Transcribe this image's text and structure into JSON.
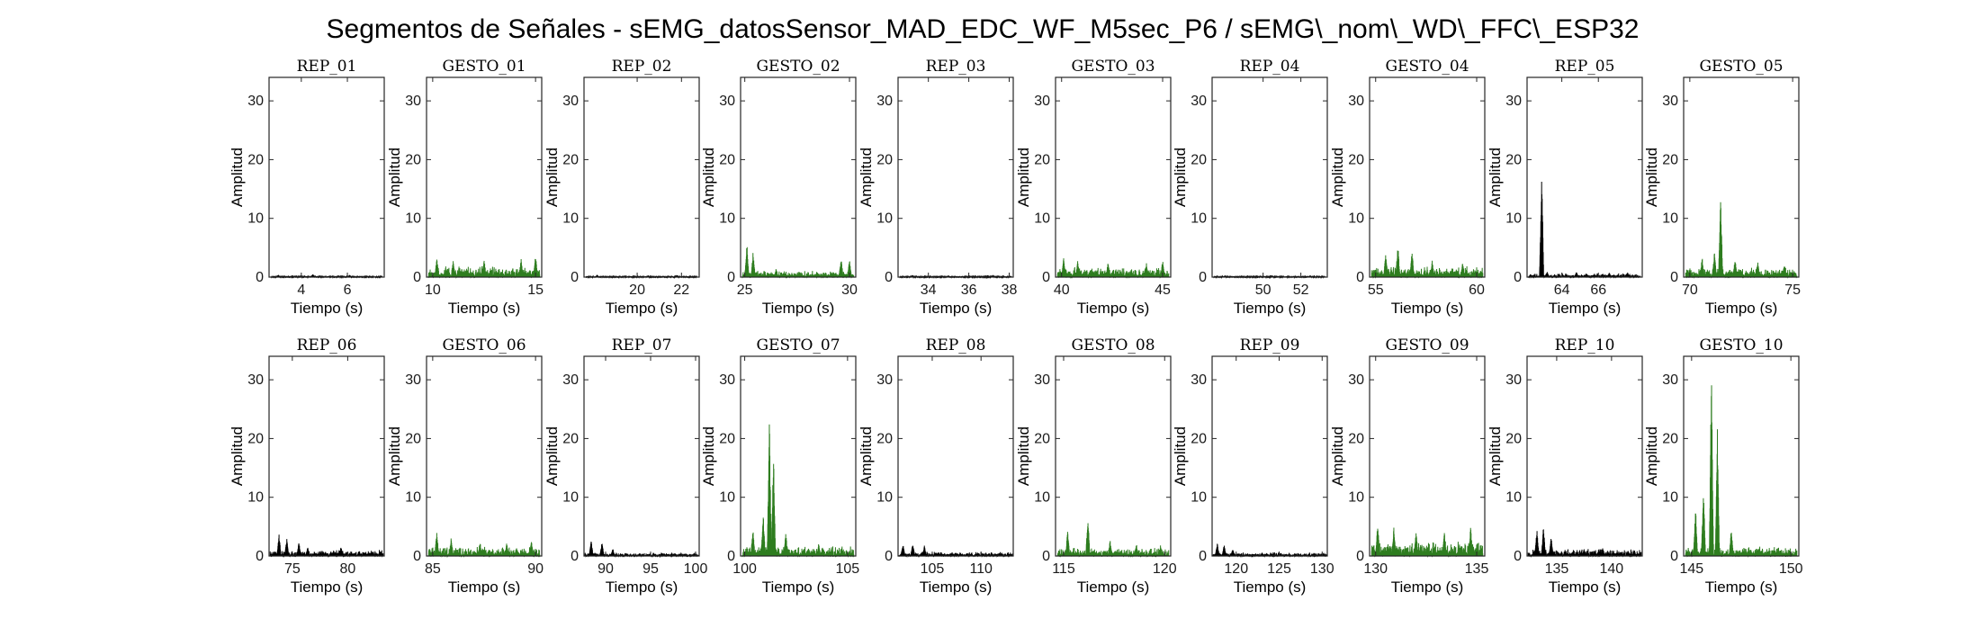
{
  "figure": {
    "title": "Segmentos de Señales - sEMG_datosSensor_MAD_EDC_WF_M5sec_P6 / sEMG\\_nom\\_WD\\_FFC\\_ESP32"
  },
  "colors": {
    "rep": "#000000",
    "gesto": "#2e7d1f",
    "axis": "#262626"
  },
  "chart_data": [
    {
      "type": "line",
      "title": "REP_01",
      "xlabel": "Tiempo (s)",
      "ylabel": "Amplitud",
      "xlim": [
        2.6,
        7.6
      ],
      "ylim": [
        0,
        34
      ],
      "yticks": [
        0,
        10,
        20,
        30
      ],
      "xticks": [
        4,
        6
      ],
      "color": "#000000",
      "series": [
        {
          "x": [
            2.7,
            7.5
          ],
          "peaks": [
            [
              3.0,
              0.4
            ],
            [
              4.5,
              0.5
            ],
            [
              6.1,
              0.4
            ]
          ],
          "noise": 0.25
        }
      ]
    },
    {
      "type": "line",
      "title": "GESTO_01",
      "xlabel": "Tiempo (s)",
      "ylabel": "Amplitud",
      "xlim": [
        9.7,
        15.3
      ],
      "ylim": [
        0,
        34
      ],
      "yticks": [
        0,
        10,
        20,
        30
      ],
      "xticks": [
        10,
        15
      ],
      "color": "#2e7d1f",
      "series": [
        {
          "x": [
            9.8,
            15.2
          ],
          "peaks": [
            [
              10.2,
              3.5
            ],
            [
              11.0,
              3.0
            ],
            [
              12.5,
              3.2
            ],
            [
              14.3,
              3.4
            ],
            [
              15.0,
              4.2
            ]
          ],
          "noise": 1.6
        }
      ]
    },
    {
      "type": "line",
      "title": "REP_02",
      "xlabel": "Tiempo (s)",
      "ylabel": "Amplitud",
      "xlim": [
        17.6,
        22.8
      ],
      "ylim": [
        0,
        34
      ],
      "yticks": [
        0,
        10,
        20,
        30
      ],
      "xticks": [
        20,
        22
      ],
      "color": "#000000",
      "series": [
        {
          "x": [
            17.7,
            22.7
          ],
          "peaks": [
            [
              18.2,
              0.4
            ],
            [
              20.5,
              0.3
            ],
            [
              21.8,
              0.4
            ]
          ],
          "noise": 0.2
        }
      ]
    },
    {
      "type": "line",
      "title": "GESTO_02",
      "xlabel": "Tiempo (s)",
      "ylabel": "Amplitud",
      "xlim": [
        24.8,
        30.3
      ],
      "ylim": [
        0,
        34
      ],
      "yticks": [
        0,
        10,
        20,
        30
      ],
      "xticks": [
        25,
        30
      ],
      "color": "#2e7d1f",
      "series": [
        {
          "x": [
            24.9,
            30.2
          ],
          "peaks": [
            [
              25.1,
              6.0
            ],
            [
              25.4,
              4.5
            ],
            [
              26.5,
              1.6
            ],
            [
              29.6,
              3.5
            ],
            [
              30.0,
              3.0
            ]
          ],
          "noise": 0.9
        }
      ]
    },
    {
      "type": "line",
      "title": "REP_03",
      "xlabel": "Tiempo (s)",
      "ylabel": "Amplitud",
      "xlim": [
        32.5,
        38.2
      ],
      "ylim": [
        0,
        34
      ],
      "yticks": [
        0,
        10,
        20,
        30
      ],
      "xticks": [
        34,
        36,
        38
      ],
      "color": "#000000",
      "series": [
        {
          "x": [
            32.6,
            38.1
          ],
          "peaks": [
            [
              33.2,
              0.4
            ],
            [
              35.0,
              0.3
            ],
            [
              37.2,
              0.4
            ]
          ],
          "noise": 0.2
        }
      ]
    },
    {
      "type": "line",
      "title": "GESTO_03",
      "xlabel": "Tiempo (s)",
      "ylabel": "Amplitud",
      "xlim": [
        39.7,
        45.4
      ],
      "ylim": [
        0,
        34
      ],
      "yticks": [
        0,
        10,
        20,
        30
      ],
      "xticks": [
        40,
        45
      ],
      "color": "#2e7d1f",
      "series": [
        {
          "x": [
            39.8,
            45.3
          ],
          "peaks": [
            [
              40.1,
              3.3
            ],
            [
              40.8,
              2.9
            ],
            [
              42.3,
              2.8
            ],
            [
              44.2,
              2.5
            ],
            [
              45.0,
              3.0
            ]
          ],
          "noise": 1.4
        }
      ]
    },
    {
      "type": "line",
      "title": "REP_04",
      "xlabel": "Tiempo (s)",
      "ylabel": "Amplitud",
      "xlim": [
        47.3,
        53.4
      ],
      "ylim": [
        0,
        34
      ],
      "yticks": [
        0,
        10,
        20,
        30
      ],
      "xticks": [
        50,
        52
      ],
      "color": "#000000",
      "series": [
        {
          "x": [
            47.4,
            53.3
          ],
          "peaks": [
            [
              48.0,
              0.3
            ],
            [
              50.5,
              0.3
            ],
            [
              52.5,
              0.3
            ]
          ],
          "noise": 0.2
        }
      ]
    },
    {
      "type": "line",
      "title": "GESTO_04",
      "xlabel": "Tiempo (s)",
      "ylabel": "Amplitud",
      "xlim": [
        54.7,
        60.4
      ],
      "ylim": [
        0,
        34
      ],
      "yticks": [
        0,
        10,
        20,
        30
      ],
      "xticks": [
        55,
        60
      ],
      "color": "#2e7d1f",
      "series": [
        {
          "x": [
            54.8,
            60.3
          ],
          "peaks": [
            [
              55.5,
              4.2
            ],
            [
              56.1,
              5.8
            ],
            [
              56.8,
              4.8
            ],
            [
              57.8,
              3.0
            ],
            [
              59.3,
              2.6
            ]
          ],
          "noise": 1.5
        }
      ]
    },
    {
      "type": "line",
      "title": "REP_05",
      "xlabel": "Tiempo (s)",
      "ylabel": "Amplitud",
      "xlim": [
        62.1,
        68.4
      ],
      "ylim": [
        0,
        34
      ],
      "yticks": [
        0,
        10,
        20,
        30
      ],
      "xticks": [
        64,
        66
      ],
      "color": "#000000",
      "series": [
        {
          "x": [
            62.2,
            68.3
          ],
          "peaks": [
            [
              62.9,
              18.5
            ],
            [
              63.2,
              1.0
            ],
            [
              64.8,
              0.9
            ],
            [
              66.6,
              0.8
            ],
            [
              67.6,
              0.8
            ]
          ],
          "noise": 0.55
        }
      ]
    },
    {
      "type": "line",
      "title": "GESTO_05",
      "xlabel": "Tiempo (s)",
      "ylabel": "Amplitud",
      "xlim": [
        69.7,
        75.3
      ],
      "ylim": [
        0,
        34
      ],
      "yticks": [
        0,
        10,
        20,
        30
      ],
      "xticks": [
        70,
        75
      ],
      "color": "#2e7d1f",
      "series": [
        {
          "x": [
            69.8,
            75.2
          ],
          "peaks": [
            [
              70.6,
              3.5
            ],
            [
              71.2,
              4.5
            ],
            [
              71.5,
              14.8
            ],
            [
              72.2,
              3.2
            ],
            [
              73.3,
              2.8
            ],
            [
              74.6,
              2.4
            ]
          ],
          "noise": 1.3
        }
      ]
    },
    {
      "type": "line",
      "title": "REP_06",
      "xlabel": "Tiempo (s)",
      "ylabel": "Amplitud",
      "xlim": [
        72.9,
        83.3
      ],
      "ylim": [
        0,
        34
      ],
      "yticks": [
        0,
        10,
        20,
        30
      ],
      "xticks": [
        75,
        80
      ],
      "color": "#000000",
      "series": [
        {
          "x": [
            73.0,
            83.2
          ],
          "peaks": [
            [
              73.8,
              3.8
            ],
            [
              74.5,
              3.2
            ],
            [
              75.6,
              2.5
            ],
            [
              76.4,
              1.6
            ],
            [
              79.4,
              1.6
            ],
            [
              81.5,
              0.6
            ]
          ],
          "noise": 0.9
        }
      ]
    },
    {
      "type": "line",
      "title": "GESTO_06",
      "xlabel": "Tiempo (s)",
      "ylabel": "Amplitud",
      "xlim": [
        84.7,
        90.3
      ],
      "ylim": [
        0,
        34
      ],
      "yticks": [
        0,
        10,
        20,
        30
      ],
      "xticks": [
        85,
        90
      ],
      "color": "#2e7d1f",
      "series": [
        {
          "x": [
            84.8,
            90.2
          ],
          "peaks": [
            [
              85.2,
              4.2
            ],
            [
              85.9,
              3.4
            ],
            [
              87.3,
              2.5
            ],
            [
              88.6,
              2.3
            ],
            [
              89.8,
              2.8
            ]
          ],
          "noise": 1.3
        }
      ]
    },
    {
      "type": "line",
      "title": "REP_07",
      "xlabel": "Tiempo (s)",
      "ylabel": "Amplitud",
      "xlim": [
        87.6,
        100.4
      ],
      "ylim": [
        0,
        34
      ],
      "yticks": [
        0,
        10,
        20,
        30
      ],
      "xticks": [
        90,
        95,
        100
      ],
      "color": "#000000",
      "series": [
        {
          "x": [
            87.7,
            100.3
          ],
          "peaks": [
            [
              88.4,
              2.6
            ],
            [
              89.6,
              2.4
            ],
            [
              90.8,
              1.3
            ],
            [
              93.8,
              0.5
            ],
            [
              97.0,
              0.4
            ]
          ],
          "noise": 0.5
        }
      ]
    },
    {
      "type": "line",
      "title": "GESTO_07",
      "xlabel": "Tiempo (s)",
      "ylabel": "Amplitud",
      "xlim": [
        99.8,
        105.4
      ],
      "ylim": [
        0,
        34
      ],
      "yticks": [
        0,
        10,
        20,
        30
      ],
      "xticks": [
        100,
        105
      ],
      "color": "#2e7d1f",
      "series": [
        {
          "x": [
            99.9,
            105.3
          ],
          "peaks": [
            [
              100.4,
              5.0
            ],
            [
              100.9,
              7.5
            ],
            [
              101.2,
              23.8
            ],
            [
              101.4,
              18.5
            ],
            [
              102.0,
              4.0
            ],
            [
              103.6,
              2.2
            ]
          ],
          "noise": 1.4
        }
      ]
    },
    {
      "type": "line",
      "title": "REP_08",
      "xlabel": "Tiempo (s)",
      "ylabel": "Amplitud",
      "xlim": [
        101.5,
        113.3
      ],
      "ylim": [
        0,
        34
      ],
      "yticks": [
        0,
        10,
        20,
        30
      ],
      "xticks": [
        105,
        110
      ],
      "color": "#000000",
      "series": [
        {
          "x": [
            101.6,
            113.2
          ],
          "peaks": [
            [
              102.0,
              2.2
            ],
            [
              103.0,
              2.4
            ],
            [
              104.2,
              1.8
            ],
            [
              105.6,
              0.7
            ],
            [
              109.0,
              0.4
            ]
          ],
          "noise": 0.6
        }
      ]
    },
    {
      "type": "line",
      "title": "GESTO_08",
      "xlabel": "Tiempo (s)",
      "ylabel": "Amplitud",
      "xlim": [
        114.6,
        120.3
      ],
      "ylim": [
        0,
        34
      ],
      "yticks": [
        0,
        10,
        20,
        30
      ],
      "xticks": [
        115,
        120
      ],
      "color": "#2e7d1f",
      "series": [
        {
          "x": [
            114.7,
            120.2
          ],
          "peaks": [
            [
              115.2,
              4.4
            ],
            [
              116.2,
              7.0
            ],
            [
              117.3,
              2.8
            ],
            [
              118.6,
              2.2
            ],
            [
              119.8,
              2.0
            ]
          ],
          "noise": 1.2
        }
      ]
    },
    {
      "type": "line",
      "title": "REP_09",
      "xlabel": "Tiempo (s)",
      "ylabel": "Amplitud",
      "xlim": [
        117.2,
        130.6
      ],
      "ylim": [
        0,
        34
      ],
      "yticks": [
        0,
        10,
        20,
        30
      ],
      "xticks": [
        120,
        125,
        130
      ],
      "color": "#000000",
      "series": [
        {
          "x": [
            117.3,
            130.5
          ],
          "peaks": [
            [
              117.8,
              2.3
            ],
            [
              118.6,
              2.0
            ],
            [
              119.6,
              1.2
            ],
            [
              122.5,
              0.4
            ],
            [
              126.0,
              0.3
            ]
          ],
          "noise": 0.5
        }
      ]
    },
    {
      "type": "line",
      "title": "GESTO_09",
      "xlabel": "Tiempo (s)",
      "ylabel": "Amplitud",
      "xlim": [
        129.7,
        135.4
      ],
      "ylim": [
        0,
        34
      ],
      "yticks": [
        0,
        10,
        20,
        30
      ],
      "xticks": [
        130,
        135
      ],
      "color": "#2e7d1f",
      "series": [
        {
          "x": [
            129.8,
            135.3
          ],
          "peaks": [
            [
              130.1,
              5.8
            ],
            [
              130.9,
              5.0
            ],
            [
              132.0,
              4.6
            ],
            [
              133.4,
              4.2
            ],
            [
              134.7,
              5.4
            ]
          ],
          "noise": 2.2
        }
      ]
    },
    {
      "type": "line",
      "title": "REP_10",
      "xlabel": "Tiempo (s)",
      "ylabel": "Amplitud",
      "xlim": [
        132.3,
        142.8
      ],
      "ylim": [
        0,
        34
      ],
      "yticks": [
        0,
        10,
        20,
        30
      ],
      "xticks": [
        135,
        140
      ],
      "color": "#000000",
      "series": [
        {
          "x": [
            132.4,
            142.7
          ],
          "peaks": [
            [
              133.2,
              4.8
            ],
            [
              133.8,
              5.2
            ],
            [
              134.5,
              3.4
            ],
            [
              137.5,
              1.2
            ],
            [
              139.2,
              1.4
            ],
            [
              141.5,
              1.0
            ]
          ],
          "noise": 1.0
        }
      ]
    },
    {
      "type": "line",
      "title": "GESTO_10",
      "xlabel": "Tiempo (s)",
      "ylabel": "Amplitud",
      "xlim": [
        144.6,
        150.4
      ],
      "ylim": [
        0,
        34
      ],
      "yticks": [
        0,
        10,
        20,
        30
      ],
      "xticks": [
        145,
        150
      ],
      "color": "#2e7d1f",
      "series": [
        {
          "x": [
            144.7,
            150.3
          ],
          "peaks": [
            [
              145.2,
              8.6
            ],
            [
              145.6,
              12.0
            ],
            [
              146.0,
              33.5
            ],
            [
              146.3,
              22.0
            ],
            [
              147.0,
              4.8
            ],
            [
              148.4,
              1.6
            ]
          ],
          "noise": 1.3
        }
      ]
    }
  ]
}
